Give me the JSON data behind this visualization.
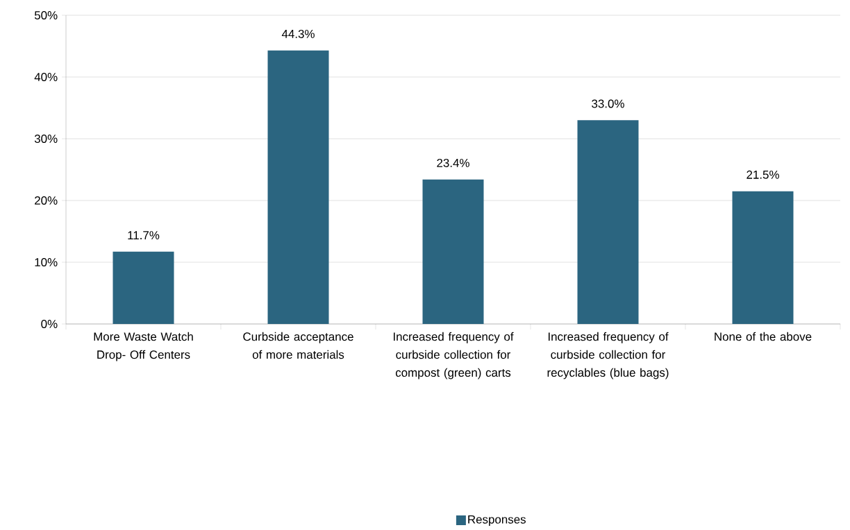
{
  "chart_data": {
    "type": "bar",
    "categories": [
      "More Waste Watch Drop- Off Centers",
      "Curbside acceptance of more materials",
      "Increased frequency of curbside collection for compost (green) carts",
      "Increased frequency of curbside collection for recyclables (blue bags)",
      "None of the above"
    ],
    "series": [
      {
        "name": "Responses",
        "color": "#2b6580",
        "values": [
          11.7,
          44.3,
          23.4,
          33.0,
          21.5
        ]
      }
    ],
    "value_labels": [
      "11.7%",
      "44.3%",
      "23.4%",
      "33.0%",
      "21.5%"
    ],
    "ylim": [
      0,
      50
    ],
    "yticks": [
      {
        "value": 0,
        "label": "0%"
      },
      {
        "value": 10,
        "label": "10%"
      },
      {
        "value": 20,
        "label": "20%"
      },
      {
        "value": 30,
        "label": "30%"
      },
      {
        "value": 40,
        "label": "40%"
      },
      {
        "value": 50,
        "label": "50%"
      }
    ],
    "grid": "y",
    "legend": "bottom"
  }
}
